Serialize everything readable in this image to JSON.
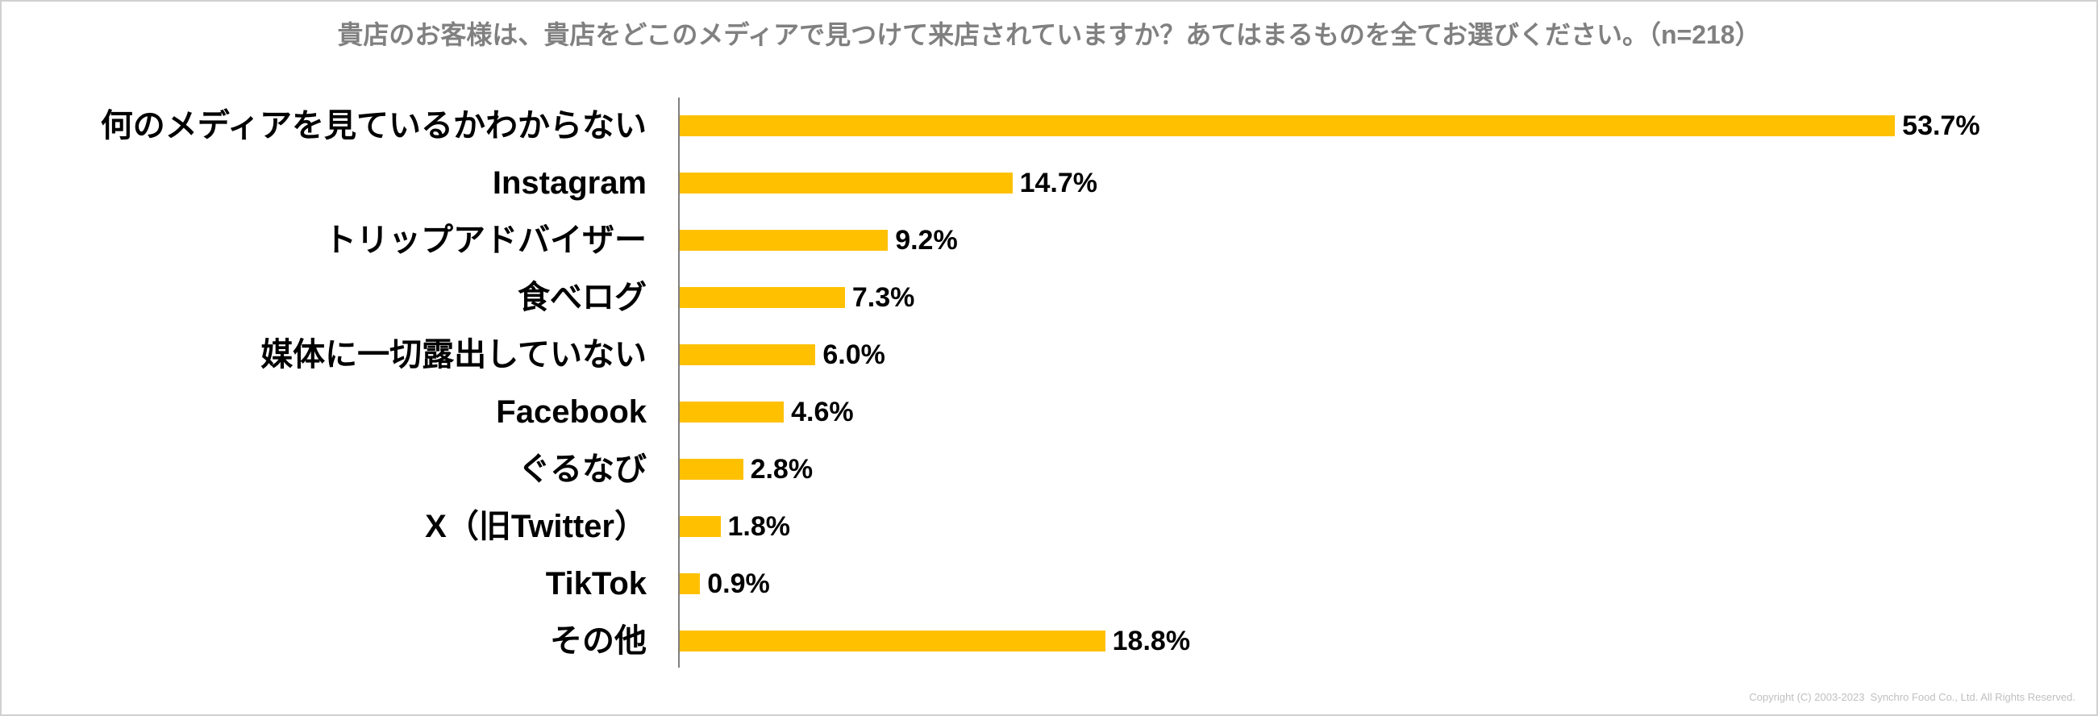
{
  "colors": {
    "bar": "#FFC000",
    "title": "#808080",
    "label": "#000000",
    "axis": "#7F7F7F",
    "copyright": "#BFBFBF"
  },
  "chart_data": {
    "type": "bar",
    "orientation": "horizontal",
    "title": "貴店のお客様は、貴店をどこのメディアで見つけて来店されていますか？あてはまるものを全てお選びください。（n=218）",
    "categories": [
      "何のメディアを見ているかわからない",
      "Instagram",
      "トリップアドバイザー",
      "食べログ",
      "媒体に一切露出していない",
      "Facebook",
      "ぐるなび",
      "X（旧Twitter）",
      "TikTok",
      "その他"
    ],
    "values": [
      53.7,
      14.7,
      9.2,
      7.3,
      6.0,
      4.6,
      2.8,
      1.8,
      0.9,
      18.8
    ],
    "data_labels": [
      "53.7%",
      "14.7%",
      "9.2%",
      "7.3%",
      "6.0%",
      "4.6%",
      "2.8%",
      "1.8%",
      "0.9%",
      "18.8%"
    ],
    "xlim": [
      0,
      60
    ],
    "grid": false,
    "legend": "none"
  },
  "footer": {
    "copyright": "Copyright (C) 2003-2023  Synchro Food Co., Ltd. All Rights Reserved."
  }
}
